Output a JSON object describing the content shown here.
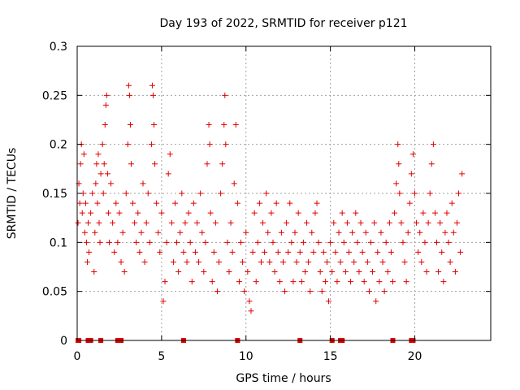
{
  "chart_data": {
    "type": "scatter",
    "title": "Day 193 of 2022, SRMTID for receiver p121",
    "xlabel": "GPS time / hours",
    "ylabel": "SRMTID / TECUs",
    "xlim": [
      0,
      24.5
    ],
    "ylim": [
      0,
      0.3
    ],
    "x_ticks": [
      0,
      5,
      10,
      15,
      20
    ],
    "x_tick_labels": [
      "0",
      "5",
      "10",
      "15",
      "20"
    ],
    "y_ticks": [
      0,
      0.05,
      0.1,
      0.15,
      0.2,
      0.25,
      0.3
    ],
    "y_tick_labels": [
      "0",
      "0.05",
      "0.1",
      "0.15",
      "0.2",
      "0.25",
      "0.3"
    ],
    "grid": true,
    "marker": "+",
    "color": "#e00000",
    "x_range_of_data": [
      0,
      23
    ],
    "zero_value_x": [
      0.05,
      0.1,
      0.65,
      0.7,
      0.75,
      0.8,
      1.4,
      2.4,
      2.5,
      2.6,
      6.3,
      9.5,
      13.2,
      15.1,
      15.6,
      15.7,
      18.7,
      19.8,
      19.9
    ],
    "series": [
      {
        "name": "SRMTID",
        "points": [
          [
            0.05,
            0.12
          ],
          [
            0.1,
            0.16
          ],
          [
            0.15,
            0.14
          ],
          [
            0.2,
            0.18
          ],
          [
            0.25,
            0.2
          ],
          [
            0.3,
            0.13
          ],
          [
            0.35,
            0.15
          ],
          [
            0.4,
            0.19
          ],
          [
            0.45,
            0.11
          ],
          [
            0.5,
            0.14
          ],
          [
            0.55,
            0.1
          ],
          [
            0.6,
            0.08
          ],
          [
            0.65,
            0.12
          ],
          [
            0.7,
            0.09
          ],
          [
            0.8,
            0.13
          ],
          [
            0.9,
            0.15
          ],
          [
            1.0,
            0.07
          ],
          [
            1.05,
            0.11
          ],
          [
            1.1,
            0.16
          ],
          [
            1.15,
            0.18
          ],
          [
            1.2,
            0.14
          ],
          [
            1.25,
            0.19
          ],
          [
            1.3,
            0.12
          ],
          [
            1.35,
            0.1
          ],
          [
            1.4,
            0.17
          ],
          [
            1.5,
            0.2
          ],
          [
            1.55,
            0.15
          ],
          [
            1.6,
            0.18
          ],
          [
            1.65,
            0.22
          ],
          [
            1.7,
            0.24
          ],
          [
            1.75,
            0.25
          ],
          [
            1.8,
            0.17
          ],
          [
            1.85,
            0.13
          ],
          [
            1.9,
            0.1
          ],
          [
            2.0,
            0.16
          ],
          [
            2.1,
            0.12
          ],
          [
            2.2,
            0.09
          ],
          [
            2.3,
            0.14
          ],
          [
            2.4,
            0.1
          ],
          [
            2.5,
            0.13
          ],
          [
            2.6,
            0.08
          ],
          [
            2.7,
            0.11
          ],
          [
            2.8,
            0.07
          ],
          [
            2.9,
            0.15
          ],
          [
            3.0,
            0.2
          ],
          [
            3.05,
            0.26
          ],
          [
            3.1,
            0.25
          ],
          [
            3.15,
            0.22
          ],
          [
            3.2,
            0.18
          ],
          [
            3.3,
            0.14
          ],
          [
            3.4,
            0.12
          ],
          [
            3.5,
            0.1
          ],
          [
            3.6,
            0.13
          ],
          [
            3.7,
            0.09
          ],
          [
            3.8,
            0.11
          ],
          [
            3.9,
            0.16
          ],
          [
            4.0,
            0.08
          ],
          [
            4.1,
            0.12
          ],
          [
            4.2,
            0.15
          ],
          [
            4.3,
            0.1
          ],
          [
            4.4,
            0.2
          ],
          [
            4.45,
            0.26
          ],
          [
            4.5,
            0.25
          ],
          [
            4.55,
            0.22
          ],
          [
            4.6,
            0.18
          ],
          [
            4.7,
            0.14
          ],
          [
            4.8,
            0.11
          ],
          [
            4.9,
            0.09
          ],
          [
            5.0,
            0.13
          ],
          [
            5.1,
            0.04
          ],
          [
            5.2,
            0.06
          ],
          [
            5.3,
            0.1
          ],
          [
            5.4,
            0.17
          ],
          [
            5.5,
            0.19
          ],
          [
            5.6,
            0.12
          ],
          [
            5.7,
            0.08
          ],
          [
            5.8,
            0.14
          ],
          [
            5.9,
            0.1
          ],
          [
            6.0,
            0.07
          ],
          [
            6.1,
            0.11
          ],
          [
            6.2,
            0.15
          ],
          [
            6.3,
            0.09
          ],
          [
            6.4,
            0.12
          ],
          [
            6.5,
            0.08
          ],
          [
            6.6,
            0.13
          ],
          [
            6.7,
            0.1
          ],
          [
            6.8,
            0.06
          ],
          [
            6.9,
            0.14
          ],
          [
            7.0,
            0.09
          ],
          [
            7.1,
            0.12
          ],
          [
            7.2,
            0.08
          ],
          [
            7.3,
            0.15
          ],
          [
            7.4,
            0.11
          ],
          [
            7.5,
            0.07
          ],
          [
            7.6,
            0.1
          ],
          [
            7.7,
            0.18
          ],
          [
            7.8,
            0.22
          ],
          [
            7.85,
            0.2
          ],
          [
            7.9,
            0.13
          ],
          [
            8.0,
            0.06
          ],
          [
            8.1,
            0.09
          ],
          [
            8.2,
            0.12
          ],
          [
            8.3,
            0.05
          ],
          [
            8.4,
            0.08
          ],
          [
            8.5,
            0.15
          ],
          [
            8.6,
            0.18
          ],
          [
            8.7,
            0.22
          ],
          [
            8.75,
            0.25
          ],
          [
            8.8,
            0.2
          ],
          [
            8.9,
            0.1
          ],
          [
            9.0,
            0.07
          ],
          [
            9.1,
            0.12
          ],
          [
            9.2,
            0.09
          ],
          [
            9.3,
            0.16
          ],
          [
            9.4,
            0.22
          ],
          [
            9.5,
            0.14
          ],
          [
            9.6,
            0.06
          ],
          [
            9.7,
            0.1
          ],
          [
            9.8,
            0.08
          ],
          [
            9.9,
            0.05
          ],
          [
            10.0,
            0.11
          ],
          [
            10.1,
            0.07
          ],
          [
            10.2,
            0.04
          ],
          [
            10.3,
            0.03
          ],
          [
            10.4,
            0.09
          ],
          [
            10.5,
            0.13
          ],
          [
            10.6,
            0.06
          ],
          [
            10.7,
            0.1
          ],
          [
            10.8,
            0.14
          ],
          [
            10.9,
            0.08
          ],
          [
            11.0,
            0.12
          ],
          [
            11.1,
            0.09
          ],
          [
            11.2,
            0.15
          ],
          [
            11.3,
            0.11
          ],
          [
            11.4,
            0.08
          ],
          [
            11.5,
            0.13
          ],
          [
            11.6,
            0.1
          ],
          [
            11.7,
            0.07
          ],
          [
            11.8,
            0.14
          ],
          [
            11.9,
            0.09
          ],
          [
            12.0,
            0.06
          ],
          [
            12.1,
            0.11
          ],
          [
            12.2,
            0.08
          ],
          [
            12.3,
            0.05
          ],
          [
            12.4,
            0.12
          ],
          [
            12.5,
            0.09
          ],
          [
            12.6,
            0.14
          ],
          [
            12.7,
            0.1
          ],
          [
            12.8,
            0.06
          ],
          [
            12.9,
            0.11
          ],
          [
            13.0,
            0.08
          ],
          [
            13.1,
            0.13
          ],
          [
            13.2,
            0.09
          ],
          [
            13.3,
            0.06
          ],
          [
            13.4,
            0.1
          ],
          [
            13.5,
            0.07
          ],
          [
            13.6,
            0.12
          ],
          [
            13.7,
            0.08
          ],
          [
            13.8,
            0.05
          ],
          [
            13.9,
            0.11
          ],
          [
            14.0,
            0.09
          ],
          [
            14.1,
            0.13
          ],
          [
            14.2,
            0.14
          ],
          [
            14.3,
            0.1
          ],
          [
            14.4,
            0.07
          ],
          [
            14.5,
            0.05
          ],
          [
            14.6,
            0.09
          ],
          [
            14.7,
            0.06
          ],
          [
            14.8,
            0.08
          ],
          [
            14.9,
            0.04
          ],
          [
            15.0,
            0.1
          ],
          [
            15.1,
            0.07
          ],
          [
            15.2,
            0.12
          ],
          [
            15.3,
            0.09
          ],
          [
            15.4,
            0.06
          ],
          [
            15.5,
            0.11
          ],
          [
            15.6,
            0.08
          ],
          [
            15.7,
            0.13
          ],
          [
            15.8,
            0.1
          ],
          [
            15.9,
            0.07
          ],
          [
            16.0,
            0.12
          ],
          [
            16.1,
            0.09
          ],
          [
            16.2,
            0.06
          ],
          [
            16.3,
            0.11
          ],
          [
            16.4,
            0.08
          ],
          [
            16.5,
            0.13
          ],
          [
            16.6,
            0.1
          ],
          [
            16.7,
            0.07
          ],
          [
            16.8,
            0.12
          ],
          [
            16.9,
            0.09
          ],
          [
            17.0,
            0.06
          ],
          [
            17.1,
            0.11
          ],
          [
            17.2,
            0.08
          ],
          [
            17.3,
            0.05
          ],
          [
            17.4,
            0.1
          ],
          [
            17.5,
            0.07
          ],
          [
            17.6,
            0.12
          ],
          [
            17.7,
            0.04
          ],
          [
            17.8,
            0.09
          ],
          [
            17.9,
            0.06
          ],
          [
            18.0,
            0.11
          ],
          [
            18.1,
            0.08
          ],
          [
            18.2,
            0.05
          ],
          [
            18.3,
            0.1
          ],
          [
            18.4,
            0.07
          ],
          [
            18.5,
            0.12
          ],
          [
            18.6,
            0.09
          ],
          [
            18.7,
            0.06
          ],
          [
            18.8,
            0.13
          ],
          [
            18.9,
            0.16
          ],
          [
            19.0,
            0.2
          ],
          [
            19.05,
            0.18
          ],
          [
            19.1,
            0.15
          ],
          [
            19.2,
            0.12
          ],
          [
            19.3,
            0.1
          ],
          [
            19.4,
            0.08
          ],
          [
            19.5,
            0.06
          ],
          [
            19.6,
            0.11
          ],
          [
            19.7,
            0.14
          ],
          [
            19.8,
            0.17
          ],
          [
            19.9,
            0.19
          ],
          [
            20.0,
            0.15
          ],
          [
            20.1,
            0.12
          ],
          [
            20.2,
            0.09
          ],
          [
            20.3,
            0.11
          ],
          [
            20.4,
            0.08
          ],
          [
            20.5,
            0.13
          ],
          [
            20.6,
            0.1
          ],
          [
            20.7,
            0.07
          ],
          [
            20.8,
            0.12
          ],
          [
            20.9,
            0.15
          ],
          [
            21.0,
            0.18
          ],
          [
            21.1,
            0.2
          ],
          [
            21.2,
            0.13
          ],
          [
            21.3,
            0.1
          ],
          [
            21.4,
            0.07
          ],
          [
            21.5,
            0.12
          ],
          [
            21.6,
            0.09
          ],
          [
            21.7,
            0.06
          ],
          [
            21.8,
            0.11
          ],
          [
            21.9,
            0.13
          ],
          [
            22.0,
            0.1
          ],
          [
            22.1,
            0.08
          ],
          [
            22.2,
            0.14
          ],
          [
            22.3,
            0.11
          ],
          [
            22.4,
            0.07
          ],
          [
            22.5,
            0.12
          ],
          [
            22.6,
            0.15
          ],
          [
            22.7,
            0.09
          ],
          [
            22.8,
            0.17
          ]
        ]
      }
    ]
  }
}
